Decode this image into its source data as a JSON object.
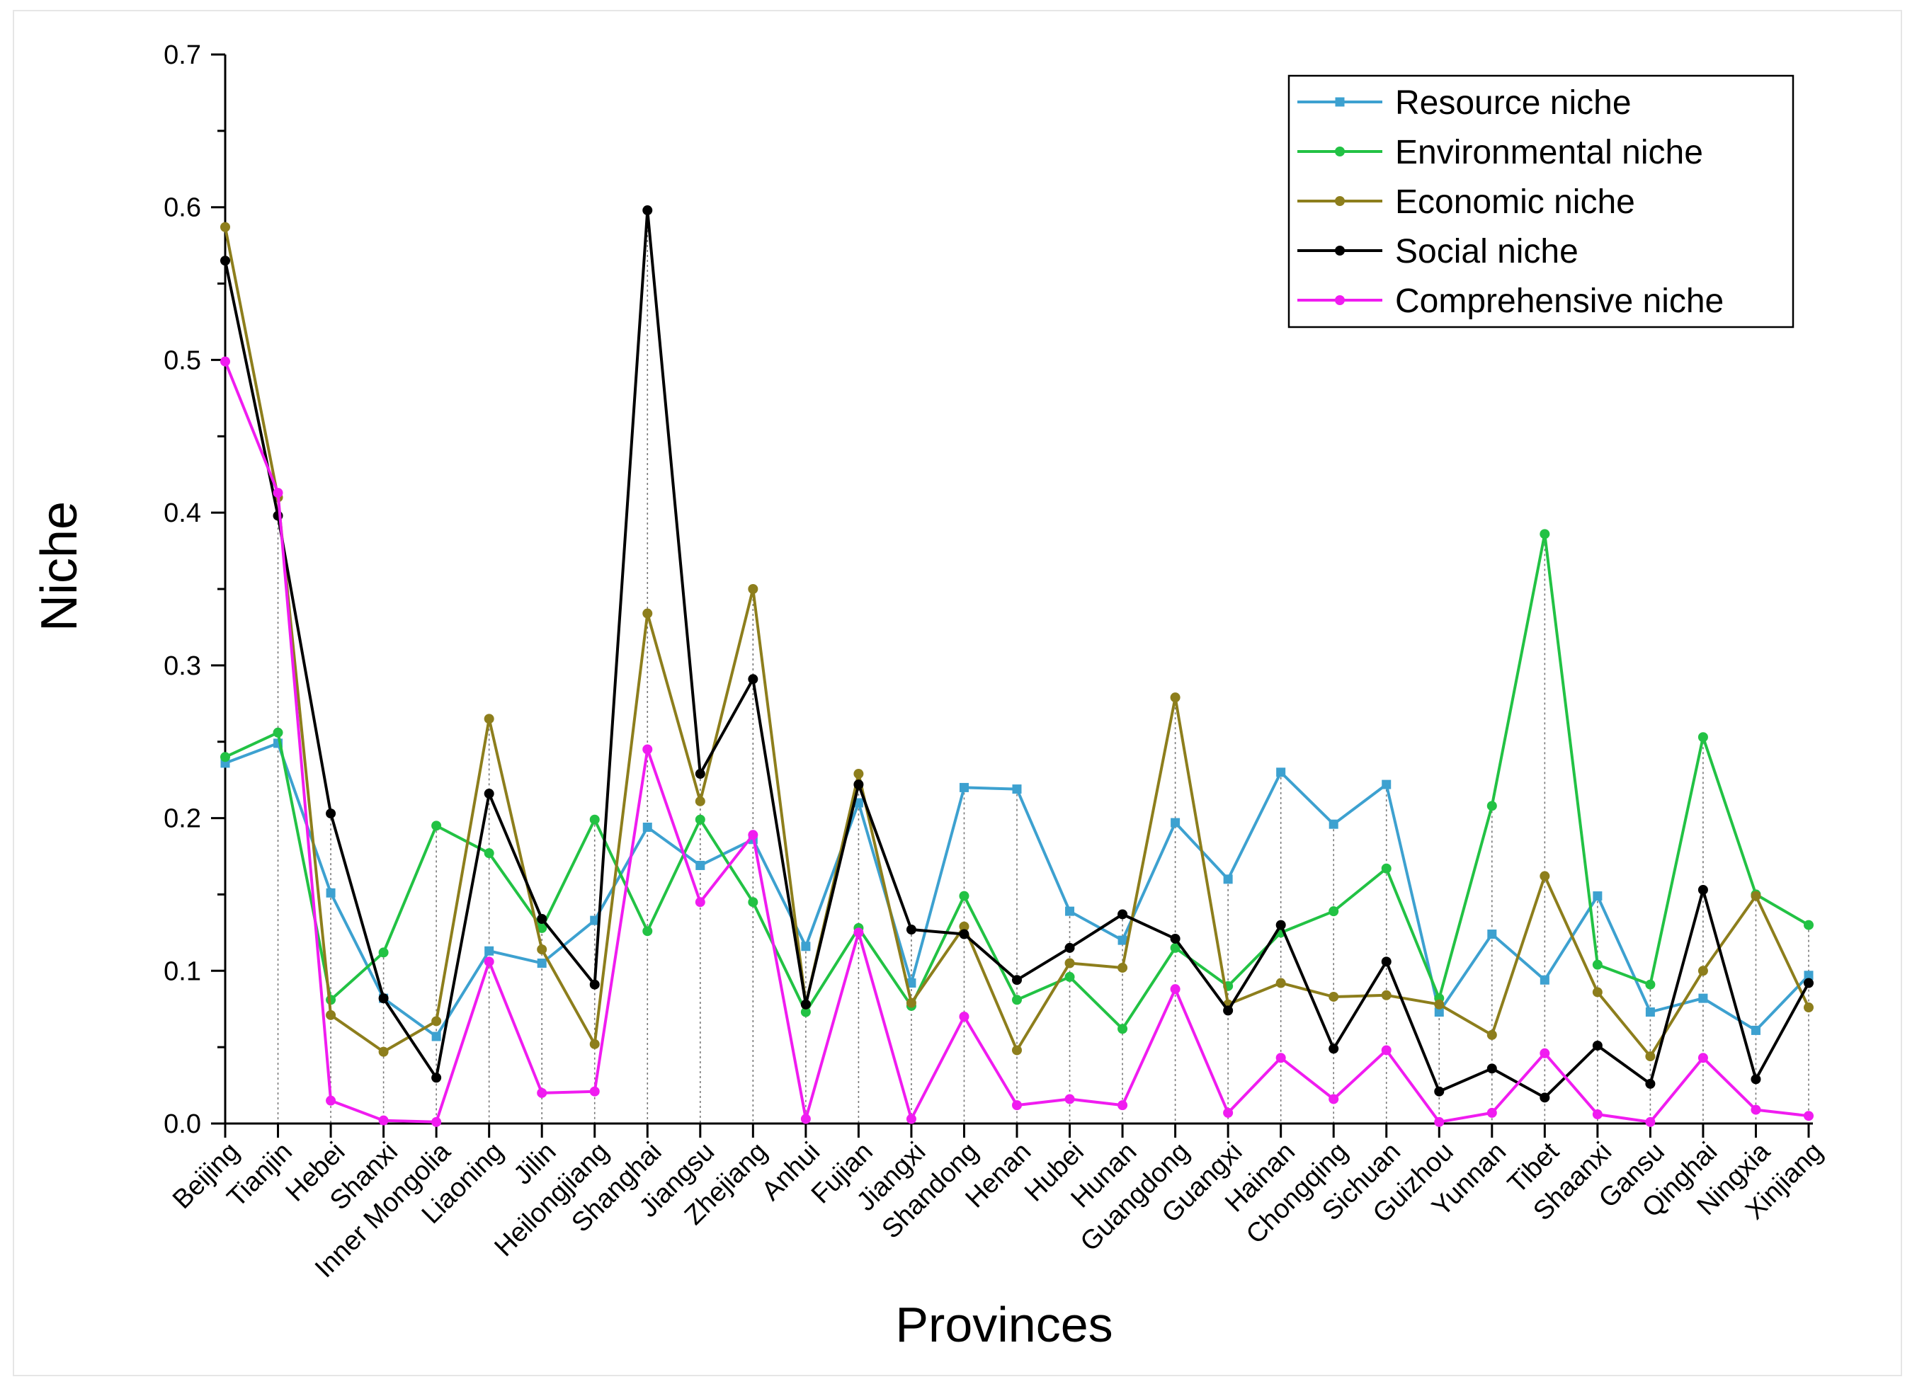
{
  "chart_data": {
    "type": "line",
    "title": "",
    "xlabel": "Provinces",
    "ylabel": "Niche",
    "ylim": [
      0,
      0.7
    ],
    "yticks": [
      "0.0",
      "0.1",
      "0.2",
      "0.3",
      "0.4",
      "0.5",
      "0.6",
      "0.7"
    ],
    "legend_position": "top-right",
    "categories": [
      "Beijing",
      "Tianjin",
      "Hebei",
      "Shanxi",
      "Inner Mongolia",
      "Liaoning",
      "Jilin",
      "Heilongjiang",
      "Shanghai",
      "Jiangsu",
      "Zhejiang",
      "Anhui",
      "Fujian",
      "Jiangxi",
      "Shandong",
      "Henan",
      "Hubei",
      "Hunan",
      "Guangdong",
      "Guangxi",
      "Hainan",
      "Chongqing",
      "Sichuan",
      "Guizhou",
      "Yunnan",
      "Tibet",
      "Shaanxi",
      "Gansu",
      "Qinghai",
      "Ningxia",
      "Xinjiang"
    ],
    "series": [
      {
        "name": "Resource niche",
        "color": "#3da1d0",
        "marker": "square",
        "values": [
          0.236,
          0.249,
          0.151,
          0.082,
          0.057,
          0.113,
          0.105,
          0.133,
          0.194,
          0.169,
          0.186,
          0.116,
          0.21,
          0.092,
          0.22,
          0.219,
          0.139,
          0.12,
          0.197,
          0.16,
          0.23,
          0.196,
          0.222,
          0.073,
          0.124,
          0.094,
          0.149,
          0.073,
          0.082,
          0.061,
          0.097
        ]
      },
      {
        "name": "Environmental niche",
        "color": "#22c244",
        "marker": "circle",
        "values": [
          0.24,
          0.256,
          0.081,
          0.112,
          0.195,
          0.177,
          0.128,
          0.199,
          0.126,
          0.199,
          0.145,
          0.073,
          0.128,
          0.077,
          0.149,
          0.081,
          0.096,
          0.062,
          0.115,
          0.09,
          0.125,
          0.139,
          0.167,
          0.082,
          0.208,
          0.386,
          0.104,
          0.091,
          0.253,
          0.15,
          0.13
        ]
      },
      {
        "name": "Economic niche",
        "color": "#8d7e1c",
        "marker": "circle",
        "values": [
          0.587,
          0.41,
          0.071,
          0.047,
          0.067,
          0.265,
          0.114,
          0.052,
          0.334,
          0.211,
          0.35,
          0.078,
          0.229,
          0.079,
          0.129,
          0.048,
          0.105,
          0.102,
          0.279,
          0.078,
          0.092,
          0.083,
          0.084,
          0.078,
          0.058,
          0.162,
          0.086,
          0.044,
          0.1,
          0.149,
          0.076
        ]
      },
      {
        "name": "Social niche",
        "color": "#000000",
        "marker": "circle",
        "values": [
          0.565,
          0.398,
          0.203,
          0.082,
          0.03,
          0.216,
          0.134,
          0.091,
          0.598,
          0.229,
          0.291,
          0.078,
          0.222,
          0.127,
          0.124,
          0.094,
          0.115,
          0.137,
          0.121,
          0.074,
          0.13,
          0.049,
          0.106,
          0.021,
          0.036,
          0.017,
          0.051,
          0.026,
          0.153,
          0.029,
          0.092
        ]
      },
      {
        "name": "Comprehensive niche",
        "color": "#f01cf0",
        "marker": "circle",
        "values": [
          0.499,
          0.413,
          0.015,
          0.002,
          0.001,
          0.106,
          0.02,
          0.021,
          0.245,
          0.145,
          0.189,
          0.003,
          0.125,
          0.003,
          0.07,
          0.012,
          0.016,
          0.012,
          0.088,
          0.007,
          0.043,
          0.016,
          0.048,
          0.001,
          0.007,
          0.046,
          0.006,
          0.001,
          0.043,
          0.009,
          0.005
        ]
      }
    ]
  }
}
